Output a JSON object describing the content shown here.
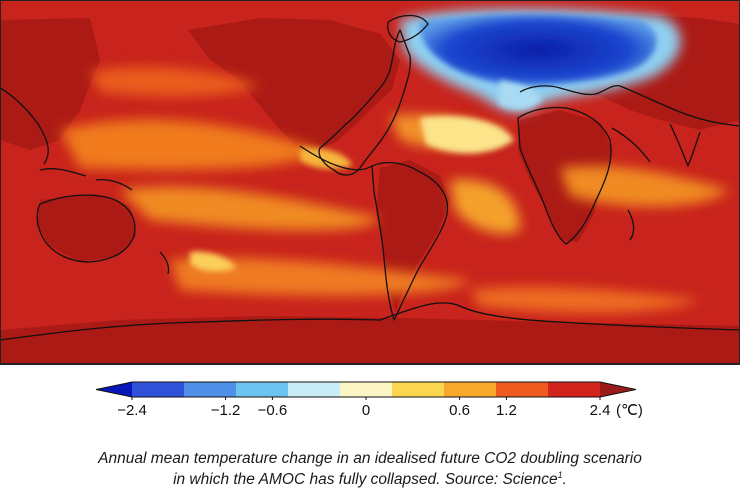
{
  "map": {
    "region_colors": {
      "ocean": "#c6211b",
      "land": "#b01a14",
      "warm_band": "#f07a1c",
      "cold_anomaly": "#0a2fb0",
      "coastline": "#111111"
    }
  },
  "colorbar": {
    "unit": "(℃)",
    "tick_labels": [
      {
        "value": -2.4,
        "label": "−2.4"
      },
      {
        "value": -1.2,
        "label": "−1.2"
      },
      {
        "value": -0.6,
        "label": "−0.6"
      },
      {
        "value": 0,
        "label": "0"
      },
      {
        "value": 0.6,
        "label": "0.6"
      },
      {
        "value": 1.2,
        "label": "1.2"
      },
      {
        "value": 2.4,
        "label": "2.4"
      }
    ],
    "bins": [
      "#0a17b8",
      "#2f52d9",
      "#4f8fe8",
      "#6dc4f0",
      "#c8ecf8",
      "#fbf6c4",
      "#fbd74f",
      "#f6a92a",
      "#ef5a1f",
      "#d1241c",
      "#9b1a1a"
    ]
  },
  "caption": {
    "line1": "Annual mean temperature change in an idealised future CO2 doubling scenario",
    "line2": "in which the AMOC has fully collapsed. Source: Science",
    "footnote": "1",
    "end": "."
  }
}
